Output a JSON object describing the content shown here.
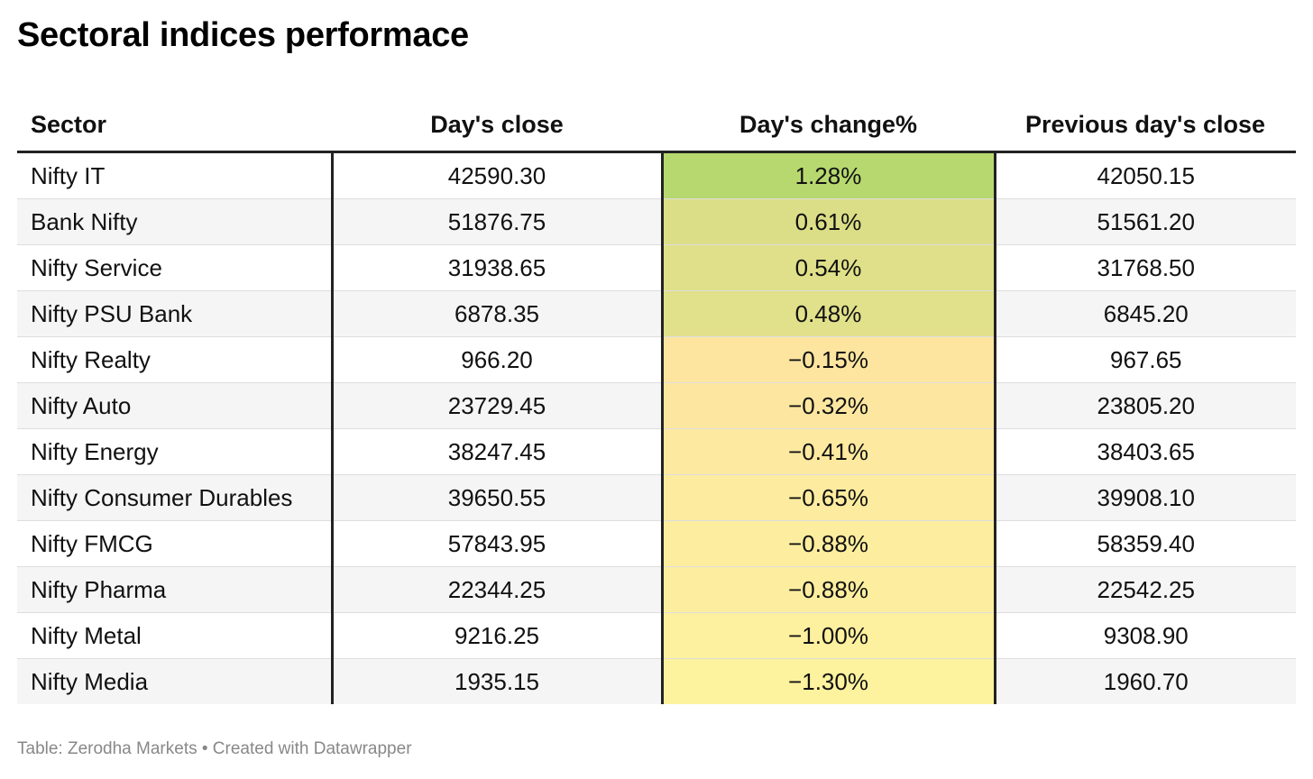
{
  "title": "Sectoral indices performace",
  "footer": "Table: Zerodha Markets • Created with Datawrapper",
  "chart_data": {
    "type": "table",
    "title": "Sectoral indices performace",
    "columns": [
      "Sector",
      "Day's close",
      "Day's change%",
      "Previous day's close"
    ],
    "rows": [
      {
        "sector": "Nifty IT",
        "close": "42590.30",
        "change": "1.28%",
        "prev": "42050.15",
        "change_value": 1.28,
        "color": "#b7d86f"
      },
      {
        "sector": "Bank Nifty",
        "close": "51876.75",
        "change": "0.61%",
        "prev": "51561.20",
        "change_value": 0.61,
        "color": "#dcde87"
      },
      {
        "sector": "Nifty Service",
        "close": "31938.65",
        "change": "0.54%",
        "prev": "31768.50",
        "change_value": 0.54,
        "color": "#dfe089"
      },
      {
        "sector": "Nifty PSU Bank",
        "close": "6878.35",
        "change": "0.48%",
        "prev": "6845.20",
        "change_value": 0.48,
        "color": "#e1e08b"
      },
      {
        "sector": "Nifty Realty",
        "close": "966.20",
        "change": "−0.15%",
        "prev": "967.65",
        "change_value": -0.15,
        "color": "#fde5a0"
      },
      {
        "sector": "Nifty Auto",
        "close": "23729.45",
        "change": "−0.32%",
        "prev": "23805.20",
        "change_value": -0.32,
        "color": "#fde7a0"
      },
      {
        "sector": "Nifty Energy",
        "close": "38247.45",
        "change": "−0.41%",
        "prev": "38403.65",
        "change_value": -0.41,
        "color": "#fde99f"
      },
      {
        "sector": "Nifty Consumer Durables",
        "close": "39650.55",
        "change": "−0.65%",
        "prev": "39908.10",
        "change_value": -0.65,
        "color": "#fdeb9f"
      },
      {
        "sector": "Nifty FMCG",
        "close": "57843.95",
        "change": "−0.88%",
        "prev": "58359.40",
        "change_value": -0.88,
        "color": "#fdee9f"
      },
      {
        "sector": "Nifty Pharma",
        "close": "22344.25",
        "change": "−0.88%",
        "prev": "22542.25",
        "change_value": -0.88,
        "color": "#fdee9f"
      },
      {
        "sector": "Nifty Metal",
        "close": "9216.25",
        "change": "−1.00%",
        "prev": "9308.90",
        "change_value": -1.0,
        "color": "#fdf09e"
      },
      {
        "sector": "Nifty Media",
        "close": "1935.15",
        "change": "−1.30%",
        "prev": "1960.70",
        "change_value": -1.3,
        "color": "#fdf29e"
      }
    ]
  }
}
